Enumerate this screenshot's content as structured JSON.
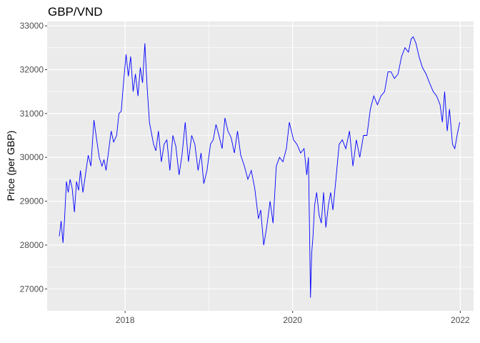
{
  "chart_data": {
    "type": "line",
    "title": "GBP/VND",
    "xlabel": "",
    "ylabel": "Price (per GBP)",
    "x_tick_labels": [
      "2018",
      "2020",
      "2022"
    ],
    "y_tick_labels": [
      "27000",
      "28000",
      "29000",
      "30000",
      "31000",
      "32000",
      "33000"
    ],
    "xlim": [
      "2017-01-26",
      "2022-02-28"
    ],
    "ylim": [
      26500,
      33100
    ],
    "grid": true,
    "legend": "none",
    "series": [
      {
        "color": "#0000FF",
        "x": [
          "2017-03-20",
          "2017-03-28",
          "2017-04-05",
          "2017-04-12",
          "2017-04-20",
          "2017-04-28",
          "2017-05-06",
          "2017-05-15",
          "2017-05-25",
          "2017-06-03",
          "2017-06-12",
          "2017-06-20",
          "2017-07-01",
          "2017-07-12",
          "2017-07-24",
          "2017-08-05",
          "2017-08-18",
          "2017-08-30",
          "2017-09-10",
          "2017-09-22",
          "2017-10-01",
          "2017-10-10",
          "2017-10-20",
          "2017-11-01",
          "2017-11-12",
          "2017-11-25",
          "2017-12-05",
          "2017-12-15",
          "2017-12-25",
          "2018-01-05",
          "2018-01-15",
          "2018-01-25",
          "2018-02-05",
          "2018-02-15",
          "2018-02-26",
          "2018-03-08",
          "2018-03-18",
          "2018-03-28",
          "2018-04-07",
          "2018-04-17",
          "2018-04-26",
          "2018-05-05",
          "2018-05-15",
          "2018-05-26",
          "2018-06-08",
          "2018-06-20",
          "2018-07-02",
          "2018-07-15",
          "2018-07-28",
          "2018-08-10",
          "2018-08-24",
          "2018-09-06",
          "2018-09-20",
          "2018-10-04",
          "2018-10-18",
          "2018-11-01",
          "2018-11-15",
          "2018-11-28",
          "2018-12-10",
          "2018-12-24",
          "2019-01-08",
          "2019-01-20",
          "2019-02-01",
          "2019-02-14",
          "2019-02-28",
          "2019-03-12",
          "2019-03-25",
          "2019-04-08",
          "2019-04-22",
          "2019-05-06",
          "2019-05-20",
          "2019-06-05",
          "2019-06-20",
          "2019-07-05",
          "2019-07-20",
          "2019-08-05",
          "2019-08-15",
          "2019-08-28",
          "2019-09-10",
          "2019-09-25",
          "2019-10-08",
          "2019-10-22",
          "2019-11-05",
          "2019-11-20",
          "2019-12-05",
          "2019-12-18",
          "2020-01-05",
          "2020-01-20",
          "2020-02-05",
          "2020-02-20",
          "2020-03-03",
          "2020-03-10",
          "2020-03-15",
          "2020-03-19",
          "2020-03-24",
          "2020-03-30",
          "2020-04-06",
          "2020-04-15",
          "2020-04-25",
          "2020-05-05",
          "2020-05-15",
          "2020-05-25",
          "2020-06-05",
          "2020-06-15",
          "2020-06-25",
          "2020-07-08",
          "2020-07-22",
          "2020-08-05",
          "2020-08-20",
          "2020-09-05",
          "2020-09-20",
          "2020-10-05",
          "2020-10-20",
          "2020-11-05",
          "2020-11-20",
          "2020-12-05",
          "2020-12-20",
          "2021-01-05",
          "2021-01-20",
          "2021-02-05",
          "2021-02-20",
          "2021-03-05",
          "2021-03-20",
          "2021-04-05",
          "2021-04-20",
          "2021-05-05",
          "2021-05-20",
          "2021-06-01",
          "2021-06-10",
          "2021-06-22",
          "2021-07-05",
          "2021-07-20",
          "2021-08-05",
          "2021-08-20",
          "2021-09-05",
          "2021-09-20",
          "2021-10-05",
          "2021-10-15",
          "2021-10-25",
          "2021-11-05",
          "2021-11-15",
          "2021-11-28",
          "2021-12-08",
          "2021-12-18",
          "2021-12-30"
        ],
        "y": [
          28200,
          28550,
          28050,
          28600,
          29450,
          29200,
          29500,
          29300,
          28750,
          29450,
          29250,
          29700,
          29200,
          29600,
          30050,
          29800,
          30850,
          30400,
          30000,
          29800,
          29950,
          29700,
          30100,
          30600,
          30350,
          30500,
          31000,
          31050,
          31700,
          32350,
          31850,
          32300,
          31500,
          31900,
          31400,
          32050,
          31700,
          32600,
          31600,
          30800,
          30550,
          30300,
          30150,
          30600,
          29900,
          30300,
          30400,
          29700,
          30500,
          30250,
          29600,
          30050,
          30800,
          29900,
          30500,
          30300,
          29700,
          30100,
          29400,
          29700,
          30300,
          30400,
          30750,
          30500,
          30200,
          30900,
          30600,
          30450,
          30100,
          30600,
          30050,
          29800,
          29500,
          29700,
          29300,
          28600,
          28800,
          28000,
          28400,
          29000,
          28500,
          29800,
          30000,
          29900,
          30200,
          30800,
          30400,
          30300,
          30100,
          30200,
          29600,
          30000,
          28300,
          26800,
          27800,
          28200,
          28900,
          29200,
          28700,
          28500,
          29200,
          28400,
          28900,
          29200,
          28800,
          29500,
          30300,
          30400,
          30200,
          30600,
          29800,
          30400,
          30000,
          30500,
          30500,
          31100,
          31400,
          31200,
          31400,
          31500,
          31950,
          31950,
          31800,
          31900,
          32300,
          32500,
          32400,
          32700,
          32750,
          32600,
          32300,
          32050,
          31900,
          31700,
          31500,
          31400,
          31200,
          30800,
          31500,
          30600,
          31100,
          30300,
          30200,
          30500,
          30800
        ]
      }
    ]
  }
}
